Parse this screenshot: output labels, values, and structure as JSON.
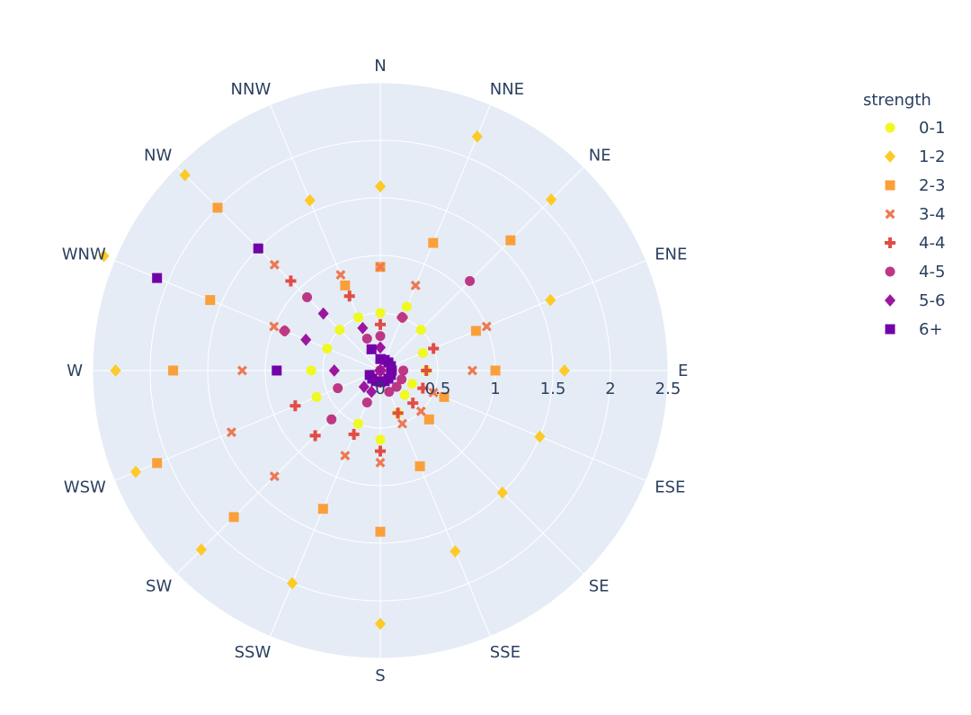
{
  "chart_data": {
    "type": "scatter",
    "subtype": "polar",
    "radial_axis": {
      "range": [
        0,
        2.5
      ],
      "tick_labels": [
        "0",
        "0.5",
        "1",
        "1.5",
        "2",
        "2.5"
      ],
      "tick_values": [
        0,
        0.5,
        1,
        1.5,
        2,
        2.5
      ]
    },
    "angular_axis": {
      "direction": "clockwise",
      "rotation": "N at top",
      "categories": [
        "N",
        "NNE",
        "NE",
        "ENE",
        "E",
        "ESE",
        "SE",
        "SSE",
        "S",
        "SSW",
        "SW",
        "WSW",
        "W",
        "WNW",
        "NW",
        "NNW"
      ]
    },
    "legend": {
      "title": "strength",
      "placement": "right"
    },
    "grid": true,
    "background": "#e5ecf6",
    "series": [
      {
        "name": "0-1",
        "marker": "circle",
        "color": "#f0f921",
        "r": [
          0.5,
          0.6,
          0.5,
          0.4,
          0.4,
          0.3,
          0.3,
          0.4,
          0.6,
          0.5,
          0.6,
          0.6,
          0.6,
          0.5,
          0.5,
          0.5
        ],
        "theta": [
          "N",
          "NNE",
          "NE",
          "ENE",
          "E",
          "ESE",
          "SE",
          "SSE",
          "S",
          "SSW",
          "SW",
          "WSW",
          "W",
          "WNW",
          "NW",
          "NNW"
        ]
      },
      {
        "name": "1-2",
        "marker": "diamond",
        "color": "#fdca26",
        "r": [
          1.6,
          2.2,
          2.1,
          1.6,
          1.6,
          1.5,
          1.5,
          1.7,
          2.2,
          2.0,
          2.2,
          2.3,
          2.3,
          2.6,
          2.4,
          1.6
        ],
        "theta": [
          "N",
          "NNE",
          "NE",
          "ENE",
          "E",
          "ESE",
          "SE",
          "SSE",
          "S",
          "SSW",
          "SW",
          "WSW",
          "W",
          "WNW",
          "NW",
          "NNW"
        ]
      },
      {
        "name": "2-3",
        "marker": "square",
        "color": "#fb9f3a",
        "r": [
          0.9,
          1.2,
          1.6,
          0.9,
          1.0,
          0.6,
          0.6,
          0.9,
          1.4,
          1.3,
          1.8,
          2.1,
          1.8,
          1.6,
          2.0,
          0.8
        ],
        "theta": [
          "N",
          "NNE",
          "NE",
          "ENE",
          "E",
          "ESE",
          "SE",
          "SSE",
          "S",
          "SSW",
          "SW",
          "WSW",
          "W",
          "WNW",
          "NW",
          "NNW"
        ]
      },
      {
        "name": "3-4",
        "marker": "x",
        "color": "#ed7953",
        "r": [
          0.9,
          0.8,
          0.0,
          1.0,
          0.8,
          0.5,
          0.5,
          0.5,
          0.8,
          0.8,
          1.3,
          1.4,
          1.2,
          1.0,
          1.3,
          0.9
        ],
        "theta": [
          "N",
          "NNE",
          "NE",
          "ENE",
          "E",
          "ESE",
          "SE",
          "SSE",
          "S",
          "SSW",
          "SW",
          "WSW",
          "W",
          "WNW",
          "NW",
          "NNW"
        ]
      },
      {
        "name": "4-4",
        "marker": "cross",
        "color": "#e14d46",
        "r": [
          0.4,
          0.5,
          0.0,
          0.5,
          0.4,
          0.4,
          0.4,
          0.4,
          0.7,
          0.6,
          0.8,
          0.8,
          0.0,
          0.9,
          1.1,
          0.7
        ],
        "theta": [
          "N",
          "NNE",
          "NE",
          "ENE",
          "E",
          "ESE",
          "SE",
          "SSE",
          "S",
          "SSW",
          "SW",
          "WSW",
          "W",
          "WNW",
          "NW",
          "NNW"
        ]
      },
      {
        "name": "4-5",
        "marker": "circle",
        "color": "#bd3786",
        "r": [
          0.3,
          0.5,
          1.1,
          0.0,
          0.2,
          0.2,
          0.2,
          0.2,
          0.0,
          0.3,
          0.6,
          0.4,
          0.0,
          0.9,
          0.9,
          0.3
        ],
        "theta": [
          "N",
          "NNE",
          "NE",
          "ENE",
          "E",
          "ESE",
          "SE",
          "SSE",
          "S",
          "SSW",
          "SW",
          "WSW",
          "W",
          "WNW",
          "NW",
          "NNW"
        ]
      },
      {
        "name": "5-6",
        "marker": "diamond",
        "color": "#9c179e",
        "r": [
          0.2,
          0.1,
          0.1,
          0.0,
          0.1,
          0.1,
          0.0,
          0.1,
          0.1,
          0.2,
          0.2,
          0.0,
          0.4,
          0.7,
          0.7,
          0.4
        ],
        "theta": [
          "N",
          "NNE",
          "NE",
          "ENE",
          "E",
          "ESE",
          "SE",
          "SSE",
          "S",
          "SSW",
          "SW",
          "WSW",
          "W",
          "WNW",
          "NW",
          "NNW"
        ]
      },
      {
        "name": "6+",
        "marker": "square",
        "color": "#7201a8",
        "r": [
          0.1,
          0.1,
          0.1,
          0.1,
          0.1,
          0.1,
          0.1,
          0.1,
          0.1,
          0.1,
          0.1,
          0.1,
          0.9,
          2.1,
          1.5,
          0.2
        ],
        "theta": [
          "N",
          "NNE",
          "NE",
          "ENE",
          "E",
          "ESE",
          "SE",
          "SSE",
          "S",
          "SSW",
          "SW",
          "WSW",
          "W",
          "WNW",
          "NW",
          "NNW"
        ]
      }
    ]
  }
}
